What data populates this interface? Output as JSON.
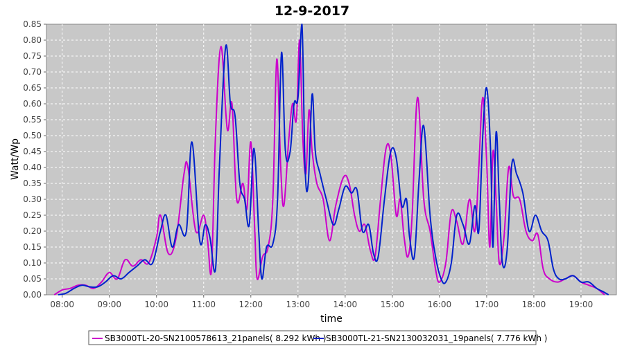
{
  "chart_data": {
    "type": "line",
    "title": "12-9-2017",
    "xlabel": "time",
    "ylabel": "Watt/Wp",
    "xlim": [
      "07:40",
      "19:45"
    ],
    "ylim": [
      0,
      0.85
    ],
    "x_ticks": [
      "08:00",
      "09:00",
      "10:00",
      "11:00",
      "12:00",
      "13:00",
      "14:00",
      "15:00",
      "16:00",
      "17:00",
      "18:00",
      "19:00"
    ],
    "y_ticks": [
      "0.00",
      "0.05",
      "0.10",
      "0.15",
      "0.20",
      "0.25",
      "0.30",
      "0.35",
      "0.40",
      "0.45",
      "0.50",
      "0.55",
      "0.60",
      "0.65",
      "0.70",
      "0.75",
      "0.80",
      "0.85"
    ],
    "grid": true,
    "legend_position": "bottom",
    "background": "#c8c8c8",
    "series": [
      {
        "name": "SB3000TL-20-SN2100578613_21panels( 8.292 kWh )",
        "color": "#cc00cc",
        "points": [
          [
            "07:50",
            0.0
          ],
          [
            "08:00",
            0.015
          ],
          [
            "08:10",
            0.02
          ],
          [
            "08:20",
            0.03
          ],
          [
            "08:30",
            0.03
          ],
          [
            "08:40",
            0.02
          ],
          [
            "08:50",
            0.04
          ],
          [
            "09:00",
            0.07
          ],
          [
            "09:10",
            0.05
          ],
          [
            "09:20",
            0.11
          ],
          [
            "09:30",
            0.09
          ],
          [
            "09:40",
            0.11
          ],
          [
            "09:50",
            0.1
          ],
          [
            "10:00",
            0.18
          ],
          [
            "10:05",
            0.25
          ],
          [
            "10:15",
            0.13
          ],
          [
            "10:25",
            0.18
          ],
          [
            "10:35",
            0.38
          ],
          [
            "10:40",
            0.4
          ],
          [
            "10:50",
            0.2
          ],
          [
            "11:00",
            0.25
          ],
          [
            "11:05",
            0.17
          ],
          [
            "11:10",
            0.08
          ],
          [
            "11:15",
            0.5
          ],
          [
            "11:22",
            0.78
          ],
          [
            "11:30",
            0.52
          ],
          [
            "11:36",
            0.6
          ],
          [
            "11:42",
            0.3
          ],
          [
            "11:50",
            0.35
          ],
          [
            "11:55",
            0.27
          ],
          [
            "12:00",
            0.48
          ],
          [
            "12:05",
            0.2
          ],
          [
            "12:08",
            0.05
          ],
          [
            "12:15",
            0.12
          ],
          [
            "12:22",
            0.15
          ],
          [
            "12:28",
            0.3
          ],
          [
            "12:33",
            0.74
          ],
          [
            "12:38",
            0.4
          ],
          [
            "12:42",
            0.28
          ],
          [
            "12:48",
            0.48
          ],
          [
            "12:53",
            0.6
          ],
          [
            "12:58",
            0.55
          ],
          [
            "13:02",
            0.8
          ],
          [
            "13:06",
            0.5
          ],
          [
            "13:10",
            0.38
          ],
          [
            "13:14",
            0.58
          ],
          [
            "13:18",
            0.45
          ],
          [
            "13:24",
            0.35
          ],
          [
            "13:32",
            0.3
          ],
          [
            "13:40",
            0.17
          ],
          [
            "13:48",
            0.28
          ],
          [
            "13:58",
            0.37
          ],
          [
            "14:05",
            0.35
          ],
          [
            "14:12",
            0.25
          ],
          [
            "14:18",
            0.2
          ],
          [
            "14:25",
            0.22
          ],
          [
            "14:32",
            0.14
          ],
          [
            "14:38",
            0.12
          ],
          [
            "14:45",
            0.3
          ],
          [
            "14:52",
            0.46
          ],
          [
            "14:58",
            0.44
          ],
          [
            "15:05",
            0.25
          ],
          [
            "15:10",
            0.3
          ],
          [
            "15:15",
            0.18
          ],
          [
            "15:20",
            0.12
          ],
          [
            "15:25",
            0.24
          ],
          [
            "15:32",
            0.62
          ],
          [
            "15:40",
            0.3
          ],
          [
            "15:48",
            0.2
          ],
          [
            "15:55",
            0.08
          ],
          [
            "16:00",
            0.04
          ],
          [
            "16:08",
            0.1
          ],
          [
            "16:15",
            0.26
          ],
          [
            "16:22",
            0.23
          ],
          [
            "16:30",
            0.16
          ],
          [
            "16:38",
            0.3
          ],
          [
            "16:45",
            0.2
          ],
          [
            "16:50",
            0.4
          ],
          [
            "16:55",
            0.62
          ],
          [
            "17:00",
            0.42
          ],
          [
            "17:04",
            0.15
          ],
          [
            "17:08",
            0.45
          ],
          [
            "17:12",
            0.3
          ],
          [
            "17:16",
            0.1
          ],
          [
            "17:22",
            0.18
          ],
          [
            "17:28",
            0.4
          ],
          [
            "17:34",
            0.31
          ],
          [
            "17:42",
            0.3
          ],
          [
            "17:50",
            0.2
          ],
          [
            "17:58",
            0.17
          ],
          [
            "18:05",
            0.19
          ],
          [
            "18:12",
            0.08
          ],
          [
            "18:20",
            0.05
          ],
          [
            "18:30",
            0.04
          ],
          [
            "18:40",
            0.05
          ],
          [
            "18:50",
            0.06
          ],
          [
            "19:00",
            0.04
          ],
          [
            "19:10",
            0.03
          ],
          [
            "19:20",
            0.02
          ],
          [
            "19:30",
            0.0
          ]
        ]
      },
      {
        "name": "SB3000TL-21-SN2130032031_19panels( 7.776 kWh )",
        "color": "#0022cc",
        "points": [
          [
            "07:55",
            0.0
          ],
          [
            "08:05",
            0.005
          ],
          [
            "08:15",
            0.02
          ],
          [
            "08:25",
            0.03
          ],
          [
            "08:35",
            0.025
          ],
          [
            "08:45",
            0.025
          ],
          [
            "08:55",
            0.04
          ],
          [
            "09:05",
            0.06
          ],
          [
            "09:15",
            0.05
          ],
          [
            "09:25",
            0.07
          ],
          [
            "09:35",
            0.09
          ],
          [
            "09:45",
            0.11
          ],
          [
            "09:55",
            0.1
          ],
          [
            "10:05",
            0.2
          ],
          [
            "10:12",
            0.25
          ],
          [
            "10:20",
            0.15
          ],
          [
            "10:28",
            0.22
          ],
          [
            "10:38",
            0.2
          ],
          [
            "10:45",
            0.48
          ],
          [
            "10:55",
            0.17
          ],
          [
            "11:02",
            0.22
          ],
          [
            "11:08",
            0.18
          ],
          [
            "11:15",
            0.08
          ],
          [
            "11:20",
            0.4
          ],
          [
            "11:28",
            0.78
          ],
          [
            "11:34",
            0.6
          ],
          [
            "11:40",
            0.56
          ],
          [
            "11:46",
            0.35
          ],
          [
            "11:52",
            0.3
          ],
          [
            "11:58",
            0.22
          ],
          [
            "12:04",
            0.46
          ],
          [
            "12:10",
            0.2
          ],
          [
            "12:14",
            0.05
          ],
          [
            "12:20",
            0.15
          ],
          [
            "12:28",
            0.16
          ],
          [
            "12:34",
            0.3
          ],
          [
            "12:39",
            0.76
          ],
          [
            "12:44",
            0.45
          ],
          [
            "12:50",
            0.45
          ],
          [
            "12:55",
            0.6
          ],
          [
            "13:00",
            0.62
          ],
          [
            "13:05",
            0.85
          ],
          [
            "13:09",
            0.4
          ],
          [
            "13:13",
            0.35
          ],
          [
            "13:18",
            0.63
          ],
          [
            "13:22",
            0.45
          ],
          [
            "13:28",
            0.38
          ],
          [
            "13:36",
            0.3
          ],
          [
            "13:45",
            0.22
          ],
          [
            "13:52",
            0.27
          ],
          [
            "14:00",
            0.34
          ],
          [
            "14:08",
            0.32
          ],
          [
            "14:15",
            0.33
          ],
          [
            "14:22",
            0.2
          ],
          [
            "14:30",
            0.22
          ],
          [
            "14:36",
            0.13
          ],
          [
            "14:42",
            0.12
          ],
          [
            "14:50",
            0.3
          ],
          [
            "14:58",
            0.45
          ],
          [
            "15:05",
            0.43
          ],
          [
            "15:12",
            0.28
          ],
          [
            "15:18",
            0.3
          ],
          [
            "15:22",
            0.18
          ],
          [
            "15:28",
            0.12
          ],
          [
            "15:34",
            0.36
          ],
          [
            "15:40",
            0.53
          ],
          [
            "15:48",
            0.25
          ],
          [
            "15:55",
            0.12
          ],
          [
            "16:02",
            0.05
          ],
          [
            "16:08",
            0.04
          ],
          [
            "16:15",
            0.1
          ],
          [
            "16:22",
            0.25
          ],
          [
            "16:30",
            0.22
          ],
          [
            "16:38",
            0.16
          ],
          [
            "16:45",
            0.28
          ],
          [
            "16:50",
            0.2
          ],
          [
            "16:55",
            0.5
          ],
          [
            "17:00",
            0.65
          ],
          [
            "17:05",
            0.45
          ],
          [
            "17:08",
            0.15
          ],
          [
            "17:12",
            0.51
          ],
          [
            "17:16",
            0.3
          ],
          [
            "17:20",
            0.1
          ],
          [
            "17:26",
            0.14
          ],
          [
            "17:32",
            0.41
          ],
          [
            "17:38",
            0.38
          ],
          [
            "17:46",
            0.32
          ],
          [
            "17:54",
            0.2
          ],
          [
            "18:02",
            0.25
          ],
          [
            "18:10",
            0.2
          ],
          [
            "18:18",
            0.17
          ],
          [
            "18:25",
            0.08
          ],
          [
            "18:32",
            0.05
          ],
          [
            "18:40",
            0.05
          ],
          [
            "18:50",
            0.06
          ],
          [
            "19:00",
            0.04
          ],
          [
            "19:10",
            0.04
          ],
          [
            "19:20",
            0.02
          ],
          [
            "19:28",
            0.01
          ],
          [
            "19:35",
            0.0
          ]
        ]
      }
    ]
  }
}
